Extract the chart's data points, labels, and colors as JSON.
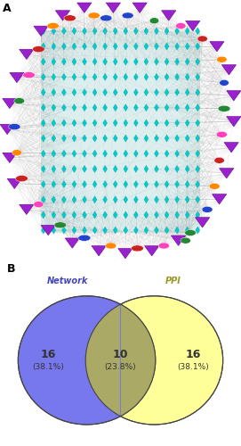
{
  "fig_width": 2.71,
  "fig_height": 5.0,
  "dpi": 100,
  "panel_A_label": "A",
  "panel_B_label": "B",
  "background_color": "#ffffff",
  "network_title": "Network",
  "ppi_title": "PPI",
  "network_color": "#7777ee",
  "ppi_color": "#ffff99",
  "intersection_color": "#aaaa66",
  "network_label_color": "#4444bb",
  "ppi_label_color": "#999922",
  "left_value": "16",
  "left_pct": "(38.1%)",
  "center_value": "10",
  "center_pct": "(23.8%)",
  "right_value": "16",
  "right_pct": "(38.1%)",
  "text_color_venn": "#333333",
  "edge_color": "#999999",
  "grid_bg": "#ddeeee",
  "cyan_node_color": "#00cccc",
  "cyan_node_edge": "#009999",
  "purple_node_color": "#9922cc",
  "purple_node_edge": "#660099",
  "gene_colors": [
    "#cc2222",
    "#ff8800",
    "#2244cc",
    "#228833",
    "#ff44bb",
    "#cc2222",
    "#ff8800",
    "#2244cc",
    "#228833",
    "#ff44bb",
    "#cc2222",
    "#ff8800",
    "#2244cc",
    "#228833",
    "#ff44bb",
    "#cc2222",
    "#ff8800",
    "#2244cc",
    "#228833",
    "#ff44bb",
    "#cc2222",
    "#ff8800",
    "#2244cc",
    "#228833",
    "#ff44bb",
    "#cc2222",
    "#ff8800",
    "#2244cc",
    "#228833",
    "#ff44bb",
    "#cc2222",
    "#ff8800",
    "#2244cc",
    "#228833",
    "#ff44bb",
    "#cc2222",
    "#ff8800",
    "#2244cc",
    "#228833",
    "#ff44bb",
    "#cc2222",
    "#ff8800",
    "#2244cc",
    "#228833",
    "#ff44bb",
    "#cc2222",
    "#ff8800"
  ]
}
